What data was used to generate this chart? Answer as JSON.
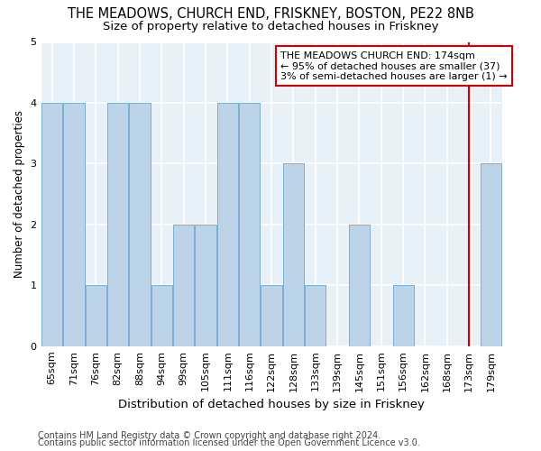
{
  "title": "THE MEADOWS, CHURCH END, FRISKNEY, BOSTON, PE22 8NB",
  "subtitle": "Size of property relative to detached houses in Friskney",
  "xlabel": "Distribution of detached houses by size in Friskney",
  "ylabel": "Number of detached properties",
  "footnote1": "Contains HM Land Registry data © Crown copyright and database right 2024.",
  "footnote2": "Contains public sector information licensed under the Open Government Licence v3.0.",
  "categories": [
    "65sqm",
    "71sqm",
    "76sqm",
    "82sqm",
    "88sqm",
    "94sqm",
    "99sqm",
    "105sqm",
    "111sqm",
    "116sqm",
    "122sqm",
    "128sqm",
    "133sqm",
    "139sqm",
    "145sqm",
    "151sqm",
    "156sqm",
    "162sqm",
    "168sqm",
    "173sqm",
    "179sqm"
  ],
  "values": [
    4,
    4,
    1,
    4,
    4,
    1,
    2,
    2,
    4,
    4,
    1,
    3,
    1,
    0,
    2,
    0,
    1,
    0,
    0,
    0,
    3
  ],
  "bar_color": "#bdd4e8",
  "bar_edge_color": "#7aaed0",
  "highlight_line_color": "#cc0000",
  "highlight_line_index": 19,
  "annotation_text": "THE MEADOWS CHURCH END: 174sqm\n← 95% of detached houses are smaller (37)\n3% of semi-detached houses are larger (1) →",
  "annotation_box_edgecolor": "#cc0000",
  "ylim": [
    0,
    5
  ],
  "yticks": [
    0,
    1,
    2,
    3,
    4,
    5
  ],
  "bg_color": "#e8f0f8",
  "grid_color": "#ffffff",
  "title_fontsize": 10.5,
  "subtitle_fontsize": 9.5,
  "ylabel_fontsize": 8.5,
  "xlabel_fontsize": 9.5,
  "tick_fontsize": 8,
  "annotation_fontsize": 8,
  "footnote_fontsize": 7
}
